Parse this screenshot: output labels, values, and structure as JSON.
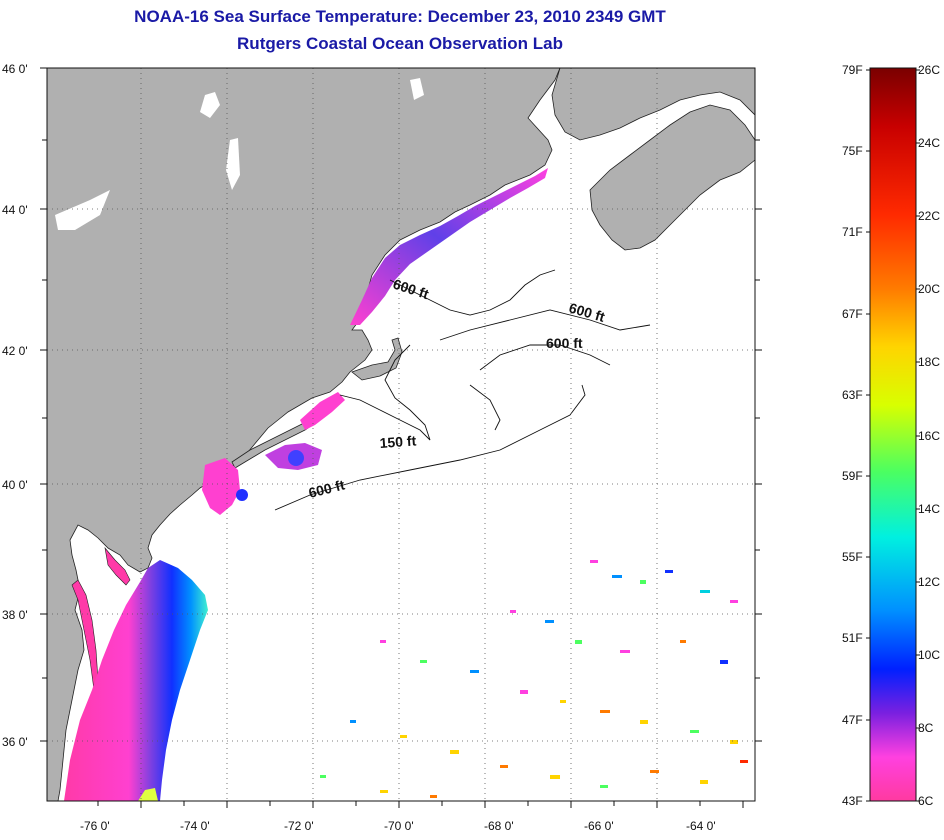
{
  "header": {
    "title": "NOAA-16 Sea Surface Temperature:  December 23, 2010 2349 GMT",
    "subtitle": "Rutgers Coastal Ocean Observation Lab"
  },
  "map": {
    "lat_labels": [
      "46 0'",
      "44 0'",
      "42 0'",
      "40 0'",
      "38 0'",
      "36 0'"
    ],
    "lon_labels": [
      "-76 0'",
      "-74 0'",
      "-72 0'",
      "-70 0'",
      "-68 0'",
      "-66 0'",
      "-64 0'"
    ],
    "contour_labels": [
      {
        "text": "600 ft",
        "id": "c600a"
      },
      {
        "text": "600 ft",
        "id": "c600b"
      },
      {
        "text": "600 ft",
        "id": "c600c"
      },
      {
        "text": "150 ft",
        "id": "c150"
      },
      {
        "text": "600 ft",
        "id": "c600d"
      }
    ],
    "colors": {
      "land": "#b0b0b0",
      "ocean": "#ffffff",
      "grid": "#555555"
    }
  },
  "colorbar": {
    "fahrenheit_labels": [
      "79F",
      "75F",
      "71F",
      "67F",
      "63F",
      "59F",
      "55F",
      "51F",
      "47F",
      "43F"
    ],
    "celsius_labels": [
      "26C",
      "24C",
      "22C",
      "20C",
      "18C",
      "16C",
      "14C",
      "12C",
      "10C",
      "8C",
      "6C"
    ],
    "gradient_stops": [
      "#7a0000",
      "#c80000",
      "#ff2a00",
      "#ff7a00",
      "#ffd400",
      "#d8ff00",
      "#4cff60",
      "#00f0e0",
      "#0090ff",
      "#0020ff",
      "#7a20e0",
      "#ff40e0",
      "#ff3aa0"
    ]
  }
}
